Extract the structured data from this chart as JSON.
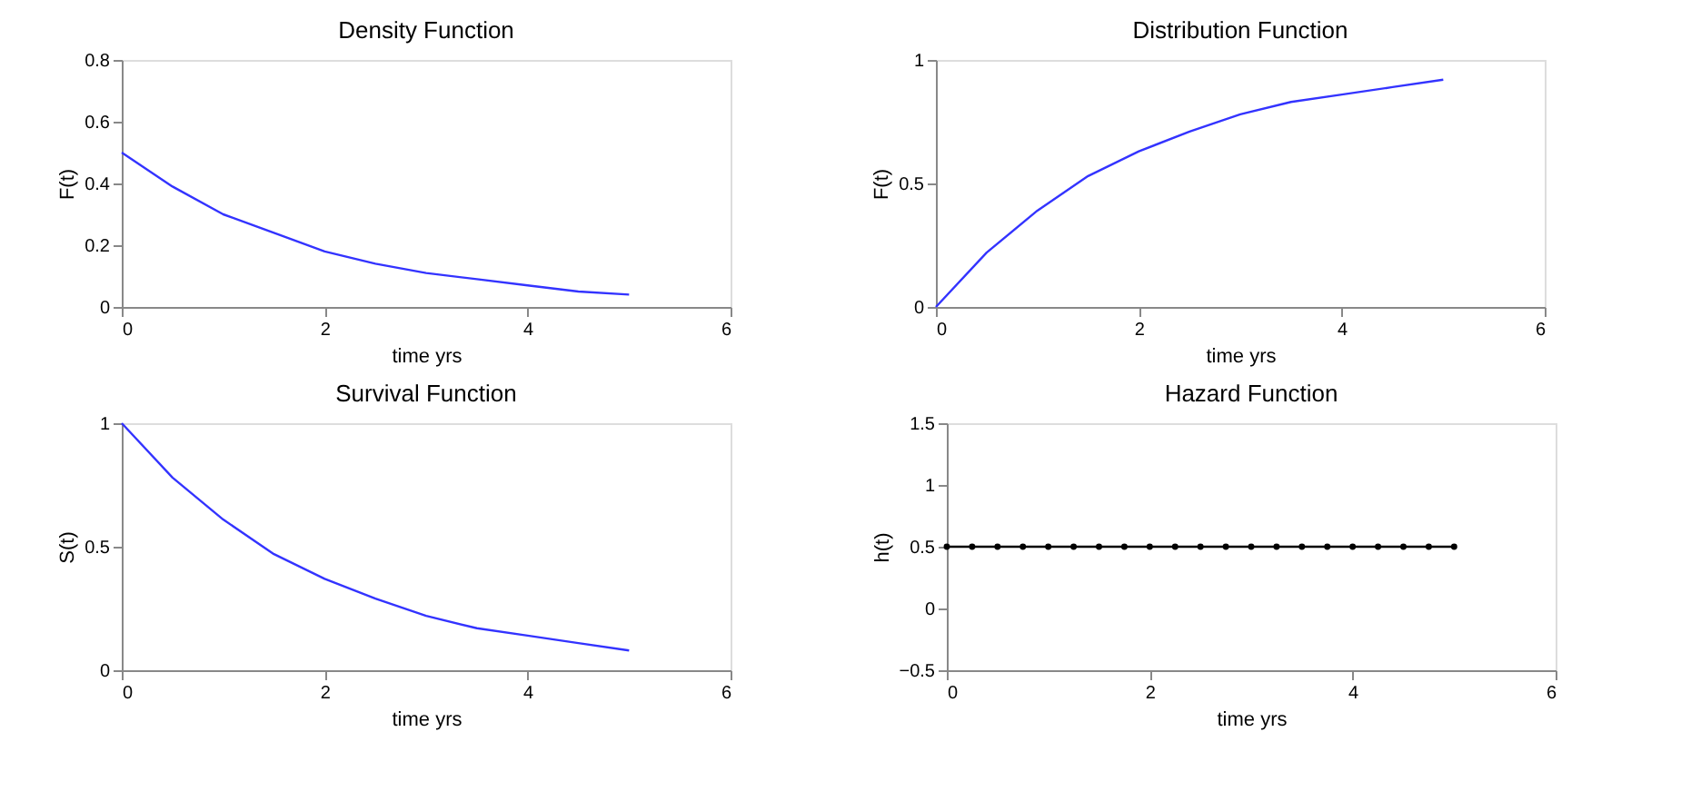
{
  "chart_data": [
    {
      "type": "line",
      "title": "Density Function",
      "xlabel": "time yrs",
      "ylabel": "F(t)",
      "xlim": [
        0,
        6
      ],
      "xticks": [
        0,
        2,
        4,
        6
      ],
      "ylim": [
        0,
        0.8
      ],
      "yticks": [
        0,
        0.2,
        0.4,
        0.6,
        0.8
      ],
      "grid": false,
      "x": [
        0,
        0.5,
        1,
        1.5,
        2,
        2.5,
        3,
        3.5,
        4,
        4.5,
        5
      ],
      "series": [
        {
          "color": "#3333ff",
          "values": [
            0.5,
            0.39,
            0.3,
            0.24,
            0.18,
            0.14,
            0.11,
            0.09,
            0.07,
            0.05,
            0.04
          ]
        }
      ]
    },
    {
      "type": "line",
      "title": "Distribution Function",
      "xlabel": "time yrs",
      "ylabel": "F(t)",
      "xlim": [
        0,
        6
      ],
      "xticks": [
        0,
        2,
        4,
        6
      ],
      "ylim": [
        0,
        1
      ],
      "yticks": [
        0,
        0.5,
        1
      ],
      "grid": false,
      "x": [
        0,
        0.5,
        1,
        1.5,
        2,
        2.5,
        3,
        3.5,
        4,
        4.5,
        5
      ],
      "series": [
        {
          "color": "#3333ff",
          "values": [
            0,
            0.22,
            0.39,
            0.53,
            0.63,
            0.71,
            0.78,
            0.83,
            0.86,
            0.89,
            0.92
          ]
        }
      ]
    },
    {
      "type": "line",
      "title": "Survival Function",
      "xlabel": "time yrs",
      "ylabel": "S(t)",
      "xlim": [
        0,
        6
      ],
      "xticks": [
        0,
        2,
        4,
        6
      ],
      "ylim": [
        0,
        1
      ],
      "yticks": [
        0,
        0.5,
        1
      ],
      "grid": false,
      "x": [
        0,
        0.5,
        1,
        1.5,
        2,
        2.5,
        3,
        3.5,
        4,
        4.5,
        5
      ],
      "series": [
        {
          "color": "#3333ff",
          "values": [
            1,
            0.78,
            0.61,
            0.47,
            0.37,
            0.29,
            0.22,
            0.17,
            0.14,
            0.11,
            0.08
          ]
        }
      ]
    },
    {
      "type": "line",
      "title": "Hazard Function",
      "xlabel": "time yrs",
      "ylabel": "h(t)",
      "xlim": [
        0,
        6
      ],
      "xticks": [
        0,
        2,
        4,
        6
      ],
      "ylim": [
        -0.5,
        1.5
      ],
      "yticks": [
        -0.5,
        0,
        0.5,
        1,
        1.5
      ],
      "grid": false,
      "marker": "circle",
      "x": [
        0,
        0.25,
        0.5,
        0.75,
        1,
        1.25,
        1.5,
        1.75,
        2,
        2.25,
        2.5,
        2.75,
        3,
        3.25,
        3.5,
        3.75,
        4,
        4.25,
        4.5,
        4.75,
        5
      ],
      "series": [
        {
          "color": "#000000",
          "values": [
            0.5,
            0.5,
            0.5,
            0.5,
            0.5,
            0.5,
            0.5,
            0.5,
            0.5,
            0.5,
            0.5,
            0.5,
            0.5,
            0.5,
            0.5,
            0.5,
            0.5,
            0.5,
            0.5,
            0.5,
            0.5
          ]
        }
      ]
    }
  ]
}
